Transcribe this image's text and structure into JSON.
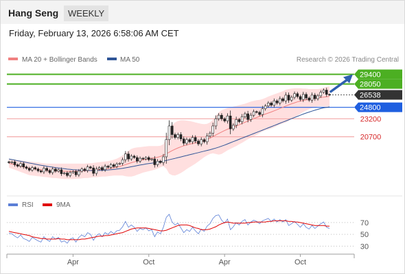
{
  "header": {
    "title": "Hang Seng",
    "timeframe": "WEEKLY"
  },
  "datetime": "Friday, February 13, 2026 6:58:06 AM CET",
  "legend": {
    "ma20": {
      "label": "MA 20 + Bollinger Bands",
      "color": "#f08080"
    },
    "ma50": {
      "label": "MA 50",
      "color": "#2f5597"
    },
    "rsi": {
      "label": "RSI",
      "color": "#5b7fd6"
    },
    "ma9": {
      "label": "9MA",
      "color": "#e00000"
    }
  },
  "credit": "Research © 2026 Trading Central",
  "chart_data": [
    {
      "type": "candlestick",
      "ylim": [
        13600,
        30400
      ],
      "current_price": {
        "value": 26538,
        "label": "26538"
      },
      "levels": [
        {
          "value": 29400,
          "label": "29400",
          "kind": "target",
          "color": "#4caf22"
        },
        {
          "value": 28050,
          "label": "28050",
          "kind": "target",
          "color": "#4caf22"
        },
        {
          "value": 24800,
          "label": "24800",
          "kind": "pivot",
          "color": "#1f5fe0"
        },
        {
          "value": 23200,
          "label": "23200",
          "kind": "support",
          "color": "#e06060"
        },
        {
          "value": 20700,
          "label": "20700",
          "kind": "support",
          "color": "#e06060"
        }
      ],
      "close": [
        17100,
        17200,
        16800,
        16600,
        16950,
        16500,
        16300,
        16050,
        16400,
        16200,
        15950,
        15800,
        16300,
        16000,
        15700,
        16200,
        15900,
        16100,
        15550,
        15650,
        15300,
        15700,
        15850,
        15400,
        15900,
        16200,
        16000,
        16500,
        16350,
        15600,
        16200,
        16400,
        16100,
        16600,
        16450,
        16800,
        16550,
        16900,
        17000,
        17500,
        18300,
        17600,
        18000,
        17800,
        17300,
        17700,
        17600,
        17800,
        17500,
        17600,
        16800,
        17300,
        17100,
        17900,
        20300,
        22200,
        21000,
        20600,
        21000,
        20400,
        19800,
        20300,
        20000,
        20600,
        20100,
        19700,
        20300,
        20000,
        20800,
        21200,
        22200,
        23200,
        23700,
        23200,
        22900,
        23600,
        21800,
        22300,
        23100,
        22800,
        23500,
        23900,
        23100,
        23700,
        24200,
        24100,
        23800,
        24600,
        25000,
        25400,
        25100,
        25700,
        25400,
        26000,
        25700,
        26500,
        25800,
        26200,
        26700,
        26300,
        25900,
        26600,
        26100,
        25800,
        26500,
        26000,
        26400,
        26900,
        27200,
        26600,
        26538
      ],
      "ma20": [
        17000,
        16900,
        16800,
        16700,
        16600,
        16500,
        16400,
        16300,
        16250,
        16200,
        16150,
        16100,
        16050,
        16000,
        15980,
        15960,
        15940,
        15920,
        15900,
        15890,
        15880,
        15870,
        15880,
        15890,
        15900,
        15920,
        15950,
        15980,
        16010,
        16040,
        16080,
        16120,
        16160,
        16200,
        16250,
        16310,
        16380,
        16460,
        16560,
        16680,
        16820,
        16950,
        17080,
        17200,
        17300,
        17400,
        17480,
        17560,
        17640,
        17700,
        17760,
        17840,
        17960,
        18120,
        18320,
        18540,
        18760,
        18960,
        19140,
        19300,
        19440,
        19560,
        19660,
        19760,
        19840,
        19920,
        20020,
        20140,
        20300,
        20500,
        20720,
        20940,
        21160,
        21360,
        21560,
        21740,
        21900,
        22040,
        22200,
        22360,
        22540,
        22720,
        22900,
        23060,
        23220,
        23380,
        23540,
        23700,
        23860,
        24000,
        24150,
        24310,
        24470,
        24640,
        24810,
        24980,
        25140,
        25290,
        25430,
        25560,
        25670,
        25770,
        25860,
        25940,
        26010,
        26070,
        26120,
        26170,
        26220,
        26280,
        26330
      ],
      "ma50": [
        17600,
        17520,
        17440,
        17360,
        17280,
        17200,
        17120,
        17040,
        16960,
        16880,
        16800,
        16730,
        16660,
        16590,
        16520,
        16460,
        16400,
        16340,
        16290,
        16240,
        16190,
        16150,
        16110,
        16080,
        16050,
        16030,
        16010,
        16000,
        15990,
        15990,
        15990,
        16000,
        16020,
        16040,
        16070,
        16100,
        16140,
        16190,
        16240,
        16300,
        16370,
        16440,
        16520,
        16600,
        16680,
        16760,
        16830,
        16900,
        16960,
        17020,
        17080,
        17150,
        17220,
        17300,
        17390,
        17490,
        17590,
        17690,
        17790,
        17890,
        17990,
        18090,
        18190,
        18290,
        18390,
        18490,
        18590,
        18690,
        18790,
        18890,
        19000,
        19120,
        19250,
        19390,
        19540,
        19700,
        19860,
        20020,
        20180,
        20340,
        20500,
        20660,
        20820,
        20980,
        21140,
        21300,
        21460,
        21620,
        21780,
        21940,
        22100,
        22260,
        22420,
        22580,
        22740,
        22900,
        23060,
        23220,
        23380,
        23540,
        23700,
        23860,
        24000,
        24140,
        24270,
        24400,
        24520,
        24630,
        24730,
        24800,
        24860
      ],
      "bb_upper": [
        17600,
        17550,
        17500,
        17450,
        17400,
        17350,
        17300,
        17250,
        17200,
        17150,
        17100,
        17050,
        17000,
        16950,
        16950,
        16950,
        16950,
        16950,
        16950,
        16950,
        16950,
        16950,
        16950,
        16950,
        16950,
        16950,
        16950,
        17000,
        17000,
        17050,
        17100,
        17150,
        17200,
        17250,
        17300,
        17400,
        17500,
        17650,
        17850,
        18100,
        18450,
        18750,
        19000,
        19150,
        19200,
        19250,
        19300,
        19350,
        19400,
        19400,
        19400,
        19400,
        19450,
        19650,
        20450,
        21600,
        22300,
        22700,
        22900,
        23000,
        23000,
        22950,
        22900,
        22800,
        22700,
        22600,
        22500,
        22450,
        22500,
        22700,
        23050,
        23600,
        24100,
        24400,
        24550,
        24700,
        24800,
        24900,
        25000,
        25100,
        25200,
        25300,
        25450,
        25600,
        25700,
        25800,
        25850,
        25950,
        26100,
        26300,
        26450,
        26600,
        26750,
        26900,
        27050,
        27250,
        27350,
        27400,
        27450,
        27450,
        27450,
        27400,
        27400,
        27350,
        27350,
        27350,
        27350,
        27400,
        27550,
        27650,
        27700
      ],
      "bb_lower": [
        16400,
        16250,
        16100,
        15950,
        15800,
        15650,
        15500,
        15350,
        15300,
        15250,
        15200,
        15150,
        15100,
        15050,
        15000,
        14950,
        14950,
        14900,
        14850,
        14800,
        14800,
        14800,
        14800,
        14850,
        14850,
        14900,
        14950,
        14950,
        15000,
        15050,
        15050,
        15100,
        15150,
        15150,
        15200,
        15250,
        15300,
        15300,
        15300,
        15300,
        15200,
        15150,
        15150,
        15250,
        15400,
        15550,
        15700,
        15800,
        15900,
        16000,
        16100,
        16250,
        16450,
        16600,
        16250,
        15550,
        15350,
        15300,
        15450,
        15650,
        15900,
        16200,
        16450,
        16700,
        16950,
        17250,
        17550,
        17850,
        18100,
        18300,
        18400,
        18300,
        18200,
        18300,
        18550,
        18800,
        19000,
        19200,
        19400,
        19650,
        19850,
        20100,
        20350,
        20550,
        20750,
        20950,
        21200,
        21450,
        21600,
        21700,
        21850,
        22000,
        22200,
        22400,
        22550,
        22700,
        22900,
        23200,
        23400,
        23650,
        23900,
        24150,
        24350,
        24550,
        24700,
        24800,
        24900,
        24950,
        24900,
        24900,
        24950
      ]
    },
    {
      "type": "line",
      "ylim": [
        20,
        85
      ],
      "ticks": [
        70,
        50,
        30
      ],
      "x_labels": [
        {
          "label": "Apr",
          "index": 22
        },
        {
          "label": "Oct",
          "index": 48
        },
        {
          "label": "Apr",
          "index": 74
        },
        {
          "label": "Oct",
          "index": 100
        }
      ],
      "rsi": [
        52,
        51,
        47,
        44,
        49,
        43,
        41,
        38,
        45,
        42,
        39,
        37,
        46,
        41,
        38,
        46,
        42,
        45,
        37,
        39,
        35,
        42,
        44,
        37,
        45,
        49,
        46,
        53,
        50,
        40,
        48,
        51,
        46,
        53,
        50,
        55,
        51,
        56,
        57,
        63,
        72,
        62,
        66,
        62,
        55,
        60,
        58,
        61,
        56,
        58,
        46,
        54,
        51,
        62,
        79,
        84,
        71,
        66,
        69,
        61,
        53,
        58,
        55,
        62,
        56,
        51,
        59,
        55,
        64,
        68,
        77,
        82,
        83,
        74,
        69,
        76,
        58,
        63,
        70,
        66,
        72,
        75,
        66,
        71,
        74,
        72,
        68,
        73,
        75,
        77,
        72,
        76,
        71,
        75,
        71,
        75,
        65,
        68,
        72,
        67,
        62,
        68,
        62,
        59,
        65,
        60,
        64,
        68,
        71,
        62,
        60
      ],
      "ma9": [
        55,
        54,
        53,
        52,
        51,
        50,
        49,
        48,
        46,
        45,
        44,
        43,
        43,
        42,
        42,
        42,
        42,
        43,
        42,
        42,
        41,
        41,
        41,
        41,
        41,
        42,
        42,
        43,
        44,
        45,
        46,
        47,
        47,
        48,
        48,
        49,
        50,
        51,
        52,
        53,
        55,
        57,
        59,
        60,
        61,
        61,
        61,
        61,
        60,
        59,
        58,
        57,
        56,
        56,
        57,
        59,
        61,
        63,
        65,
        66,
        66,
        66,
        65,
        63,
        61,
        60,
        58,
        58,
        58,
        59,
        61,
        63,
        66,
        68,
        70,
        71,
        70,
        69,
        69,
        69,
        69,
        69,
        70,
        70,
        71,
        71,
        71,
        71,
        71,
        72,
        72,
        73,
        73,
        73,
        73,
        73,
        72,
        72,
        71,
        71,
        70,
        69,
        68,
        67,
        66,
        65,
        65,
        65,
        65,
        64,
        64
      ]
    }
  ]
}
